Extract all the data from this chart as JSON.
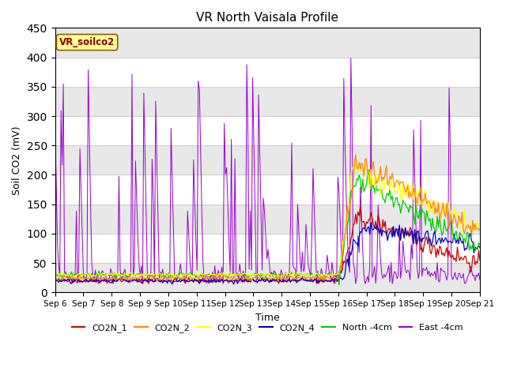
{
  "title": "VR North Vaisala Profile",
  "xlabel": "Time",
  "ylabel": "Soil CO2 (mV)",
  "ylim": [
    0,
    450
  ],
  "x_tick_labels": [
    "Sep 6",
    "Sep 7",
    "Sep 8",
    "Sep 9",
    "Sep 10",
    "Sep 11",
    "Sep 12",
    "Sep 13",
    "Sep 14",
    "Sep 15",
    "Sep 16",
    "Sep 17",
    "Sep 18",
    "Sep 19",
    "Sep 20",
    "Sep 21"
  ],
  "legend_entries": [
    "CO2N_1",
    "CO2N_2",
    "CO2N_3",
    "CO2N_4",
    "North -4cm",
    "East -4cm"
  ],
  "legend_colors": [
    "#cc0000",
    "#ff8800",
    "#ffff00",
    "#0000cc",
    "#00cc00",
    "#9900cc"
  ],
  "annotation_text": "VR_soilco2",
  "annotation_color": "#8B0000",
  "annotation_bg": "#ffff99",
  "plot_bg_color": "#f0f0f0",
  "title_fontsize": 11,
  "seed": 42
}
